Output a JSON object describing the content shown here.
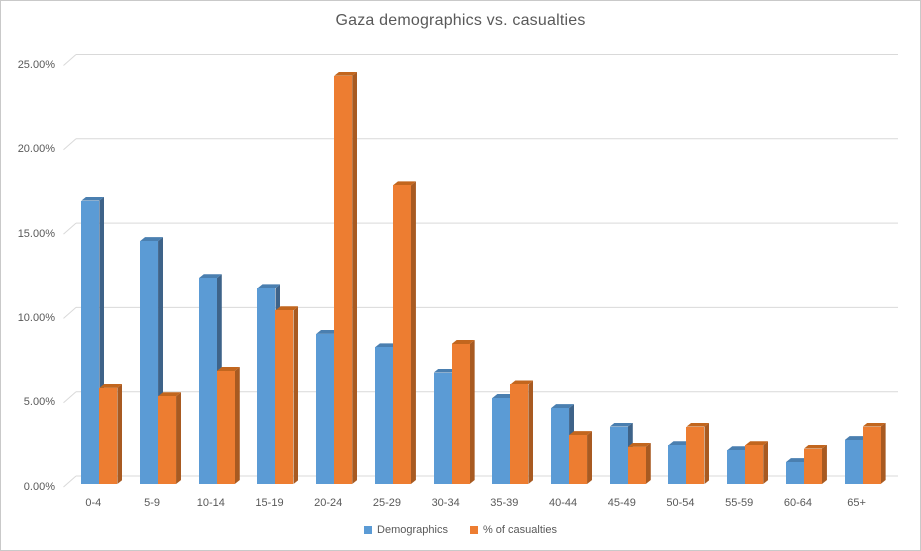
{
  "window": {
    "background": "#FFFFFF",
    "border_color": "#C9C9C9"
  },
  "chart_data": {
    "type": "bar",
    "subtype": "3d-clustered-column",
    "title": "Gaza demographics vs. casualties",
    "categories": [
      "0-4",
      "5-9",
      "10-14",
      "15-19",
      "20-24",
      "25-29",
      "30-34",
      "35-39",
      "40-44",
      "45-49",
      "50-54",
      "55-59",
      "60-64",
      "65+"
    ],
    "series": [
      {
        "name": "Demographics",
        "color": "#5B9BD5",
        "values": [
          16.8,
          14.4,
          12.2,
          11.6,
          8.9,
          8.1,
          6.6,
          5.1,
          4.5,
          3.4,
          2.3,
          2.0,
          1.3,
          2.6
        ]
      },
      {
        "name": "% of casualties",
        "color": "#ED7D31",
        "values": [
          5.7,
          5.2,
          6.7,
          10.3,
          24.2,
          17.7,
          8.3,
          5.9,
          2.9,
          2.2,
          3.4,
          2.3,
          2.1,
          3.4
        ]
      }
    ],
    "xlabel": "",
    "ylabel": "",
    "ylim": [
      0,
      25
    ],
    "ytick_step": 5,
    "ytick_labels": [
      "0.00%",
      "5.00%",
      "10.00%",
      "15.00%",
      "20.00%",
      "25.00%"
    ],
    "grid": true,
    "legend_position": "bottom",
    "values_unit": "percent"
  },
  "colors": {
    "demographics_front": "#5B9BD5",
    "demographics_side": "#3E6389",
    "demographics_top": "#4A7FB0",
    "casualties_front": "#ED7D31",
    "casualties_side": "#A85A21",
    "casualties_top": "#C2661E",
    "gridline": "#D9D9D9",
    "text": "#595959"
  }
}
